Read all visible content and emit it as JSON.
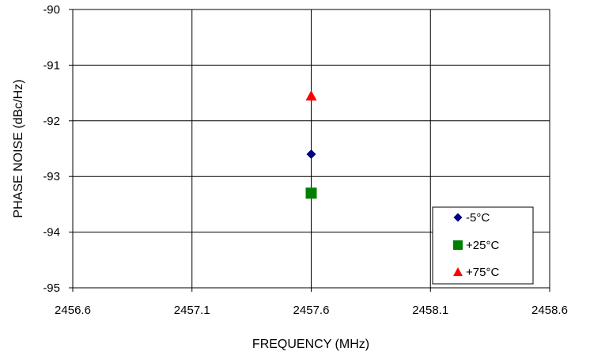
{
  "chart_data": {
    "type": "scatter",
    "xlabel": "FREQUENCY (MHz)",
    "ylabel": "PHASE NOISE  (dBc/Hz)",
    "xlim": [
      2456.6,
      2458.6
    ],
    "ylim": [
      -95,
      -90
    ],
    "x_ticks": [
      "2456.6",
      "2457.1",
      "2457.6",
      "2458.1",
      "2458.6"
    ],
    "y_ticks": [
      "-90",
      "-91",
      "-92",
      "-93",
      "-94",
      "-95"
    ],
    "grid": true,
    "legend_position": "bottom-right",
    "series": [
      {
        "name": "-5°C",
        "marker": "diamond",
        "color": "#000080",
        "points": [
          {
            "x": 2457.6,
            "y": -92.6
          }
        ]
      },
      {
        "name": "+25°C",
        "marker": "square",
        "color": "#008000",
        "points": [
          {
            "x": 2457.6,
            "y": -93.3
          }
        ]
      },
      {
        "name": "+75°C",
        "marker": "triangle",
        "color": "#ff0000",
        "points": [
          {
            "x": 2457.6,
            "y": -91.55
          }
        ]
      }
    ]
  }
}
